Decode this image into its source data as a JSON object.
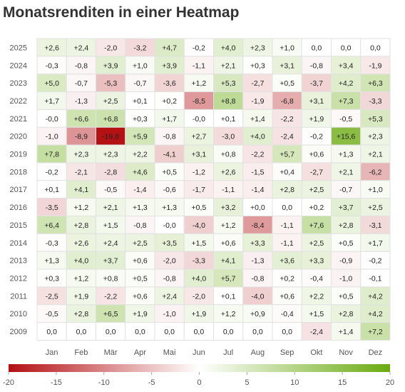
{
  "title": "Monatsrenditen in einer Heatmap",
  "chart_data": {
    "type": "heatmap",
    "title": "Monatsrenditen in einer Heatmap",
    "x_categories": [
      "Jan",
      "Feb",
      "Mär",
      "Apr",
      "Mai",
      "Jun",
      "Jul",
      "Aug",
      "Sep",
      "Okt",
      "Nov",
      "Dez"
    ],
    "y_categories": [
      "2025",
      "2024",
      "2023",
      "2022",
      "2021",
      "2020",
      "2019",
      "2018",
      "2017",
      "2016",
      "2015",
      "2014",
      "2013",
      "2012",
      "2011",
      "2010",
      "2009"
    ],
    "values": [
      [
        2.6,
        2.4,
        -2.0,
        -3.2,
        4.7,
        -0.2,
        4.0,
        2.3,
        1.0,
        0.0,
        0.0,
        0.0
      ],
      [
        -0.3,
        -0.8,
        3.9,
        1.0,
        3.9,
        -1.1,
        2.1,
        0.3,
        3.1,
        -0.8,
        3.4,
        -1.9
      ],
      [
        5.0,
        -0.7,
        -5.3,
        -0.7,
        -3.6,
        1.2,
        5.3,
        -2.7,
        0.5,
        -3.7,
        4.2,
        6.3
      ],
      [
        1.7,
        -1.3,
        2.5,
        0.1,
        0.2,
        -8.5,
        8.8,
        -1.9,
        -6.8,
        3.1,
        7.3,
        -3.3
      ],
      [
        -0.0,
        6.6,
        6.8,
        0.3,
        1.7,
        -0.0,
        0.1,
        1.4,
        -2.2,
        1.9,
        -0.5,
        5.3
      ],
      [
        -1.0,
        -8.9,
        -19.8,
        5.9,
        -0.8,
        2.7,
        -3.0,
        4.0,
        -2.4,
        -0.2,
        15.6,
        2.3
      ],
      [
        7.8,
        2.3,
        2.3,
        2.2,
        -4.1,
        3.1,
        0.8,
        -2.2,
        5.7,
        0.6,
        1.3,
        2.1
      ],
      [
        -0.2,
        -2.1,
        -2.8,
        4.6,
        0.5,
        -1.2,
        2.6,
        -1.5,
        0.4,
        -2.7,
        2.1,
        -6.2
      ],
      [
        0.1,
        4.1,
        -0.5,
        -1.4,
        -0.6,
        -1.7,
        -1.1,
        -1.4,
        2.8,
        2.5,
        -0.7,
        1.0
      ],
      [
        -3.5,
        1.2,
        2.1,
        1.3,
        1.3,
        0.5,
        3.2,
        0.0,
        0.0,
        0.2,
        3.7,
        2.5
      ],
      [
        6.4,
        2.8,
        1.5,
        -0.8,
        -0.0,
        -4.0,
        1.2,
        -8.4,
        -1.1,
        7.6,
        2.8,
        -3.1
      ],
      [
        -0.3,
        2.6,
        2.4,
        2.5,
        3.5,
        1.5,
        0.6,
        3.3,
        -1.1,
        2.5,
        0.5,
        1.7
      ],
      [
        1.3,
        4.0,
        3.7,
        0.6,
        -2.0,
        -3.3,
        4.1,
        -1.3,
        3.6,
        3.3,
        -0.9,
        -0.2
      ],
      [
        0.3,
        1.2,
        0.8,
        0.5,
        -0.8,
        4.0,
        5.7,
        -0.8,
        0.2,
        -0.4,
        -1.0,
        -0.1
      ],
      [
        -2.5,
        1.9,
        -2.2,
        0.6,
        2.4,
        -2.0,
        0.1,
        -4.0,
        0.6,
        2.2,
        0.5,
        4.2
      ],
      [
        -0.5,
        2.8,
        6.5,
        1.9,
        -1.0,
        1.9,
        1.2,
        0.9,
        -0.4,
        1.5,
        2.8,
        4.2
      ],
      [
        0.0,
        0.0,
        0.0,
        0.0,
        0.0,
        0.0,
        0.0,
        0.0,
        0.0,
        -2.4,
        1.4,
        7.2
      ]
    ],
    "display_labels": [
      [
        "+2,6",
        "+2,4",
        "-2,0",
        "-3,2",
        "+4,7",
        "-0,2",
        "+4,0",
        "+2,3",
        "+1,0",
        "0,0",
        "0,0",
        "0,0"
      ],
      [
        "-0,3",
        "-0,8",
        "+3,9",
        "+1,0",
        "+3,9",
        "-1,1",
        "+2,1",
        "+0,3",
        "+3,1",
        "-0,8",
        "+3,4",
        "-1,9"
      ],
      [
        "+5,0",
        "-0,7",
        "-5,3",
        "-0,7",
        "-3,6",
        "+1,2",
        "+5,3",
        "-2,7",
        "+0,5",
        "-3,7",
        "+4,2",
        "+6,3"
      ],
      [
        "+1,7",
        "-1,3",
        "+2,5",
        "+0,1",
        "+0,2",
        "-8,5",
        "+8,8",
        "-1,9",
        "-6,8",
        "+3,1",
        "+7,3",
        "-3,3"
      ],
      [
        "-0,0",
        "+6,6",
        "+6,8",
        "+0,3",
        "+1,7",
        "-0,0",
        "+0,1",
        "+1,4",
        "-2,2",
        "+1,9",
        "-0,5",
        "+5,3"
      ],
      [
        "-1,0",
        "-8,9",
        "-19,8",
        "+5,9",
        "-0,8",
        "+2,7",
        "-3,0",
        "+4,0",
        "-2,4",
        "-0,2",
        "+15,6",
        "+2,3"
      ],
      [
        "+7,8",
        "+2,3",
        "+2,3",
        "+2,2",
        "-4,1",
        "+3,1",
        "+0,8",
        "-2,2",
        "+5,7",
        "+0,6",
        "+1,3",
        "+2,1"
      ],
      [
        "-0,2",
        "-2,1",
        "-2,8",
        "+4,6",
        "+0,5",
        "-1,2",
        "+2,6",
        "-1,5",
        "+0,4",
        "-2,7",
        "+2,1",
        "-6,2"
      ],
      [
        "+0,1",
        "+4,1",
        "-0,5",
        "-1,4",
        "-0,6",
        "-1,7",
        "-1,1",
        "-1,4",
        "+2,8",
        "+2,5",
        "-0,7",
        "+1,0"
      ],
      [
        "-3,5",
        "+1,2",
        "+2,1",
        "+1,3",
        "+1,3",
        "+0,5",
        "+3,2",
        "+0,0",
        "0,0",
        "+0,2",
        "+3,7",
        "+2,5"
      ],
      [
        "+6,4",
        "+2,8",
        "+1,5",
        "-0,8",
        "-0,0",
        "-4,0",
        "+1,2",
        "-8,4",
        "-1,1",
        "+7,6",
        "+2,8",
        "-3,1"
      ],
      [
        "-0,3",
        "+2,6",
        "+2,4",
        "+2,5",
        "+3,5",
        "+1,5",
        "+0,6",
        "+3,3",
        "-1,1",
        "+2,5",
        "+0,5",
        "+1,7"
      ],
      [
        "+1,3",
        "+4,0",
        "+3,7",
        "+0,6",
        "-2,0",
        "-3,3",
        "+4,1",
        "-1,3",
        "+3,6",
        "+3,3",
        "-0,9",
        "-0,2"
      ],
      [
        "+0,3",
        "+1,2",
        "+0,8",
        "+0,5",
        "-0,8",
        "+4,0",
        "+5,7",
        "-0,8",
        "+0,2",
        "-0,4",
        "-1,0",
        "-0,1"
      ],
      [
        "-2,5",
        "+1,9",
        "-2,2",
        "+0,6",
        "+2,4",
        "-2,0",
        "+0,1",
        "-4,0",
        "+0,6",
        "+2,2",
        "+0,5",
        "+4,2"
      ],
      [
        "-0,5",
        "+2,8",
        "+6,5",
        "+1,9",
        "-1,0",
        "+1,9",
        "+1,2",
        "+0,9",
        "-0,4",
        "+1,5",
        "+2,8",
        "+4,2"
      ],
      [
        "0,0",
        "0,0",
        "0,0",
        "0,0",
        "0,0",
        "0,0",
        "0,0",
        "0,0",
        "0,0",
        "-2,4",
        "+1,4",
        "+7,2"
      ]
    ],
    "color_scale": {
      "min": -20,
      "max": 20,
      "low_color": "#b30f12",
      "mid_color": "#ffffff",
      "high_color": "#6aaa10"
    },
    "legend": {
      "placement": "bottom",
      "ticks": [
        -20,
        -15,
        -10,
        -5,
        0,
        5,
        10,
        15,
        20
      ],
      "tick_labels": [
        "-20",
        "-15",
        "-10",
        "-5",
        "0",
        "5",
        "10",
        "15",
        "20"
      ]
    }
  }
}
